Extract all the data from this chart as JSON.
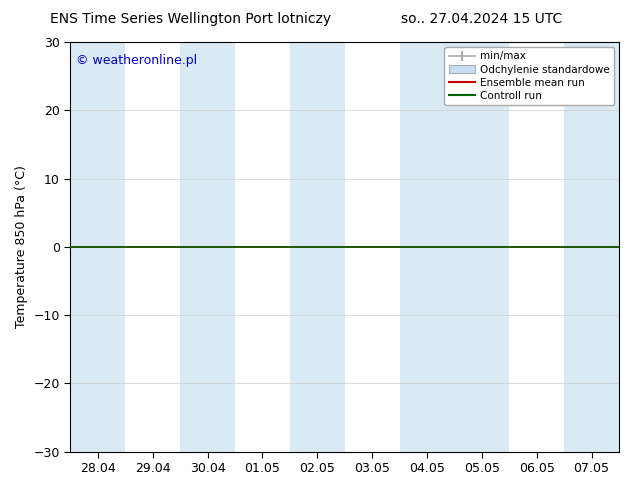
{
  "title_left": "ENS Time Series Wellington Port lotniczy",
  "title_right": "so.. 27.04.2024 15 UTC",
  "ylabel": "Temperature 850 hPa (°C)",
  "watermark": "© weatheronline.pl",
  "watermark_color": "#0000cc",
  "ylim": [
    -30,
    30
  ],
  "yticks": [
    -30,
    -20,
    -10,
    0,
    10,
    20,
    30
  ],
  "x_labels": [
    "28.04",
    "29.04",
    "30.04",
    "01.05",
    "02.05",
    "03.05",
    "04.05",
    "05.05",
    "06.05",
    "07.05"
  ],
  "x_values": [
    0,
    1,
    2,
    3,
    4,
    5,
    6,
    7,
    8,
    9
  ],
  "shaded_columns": [
    0,
    2,
    4,
    6,
    7,
    9
  ],
  "shade_color": "#daeaf5",
  "control_run_color": "#006600",
  "ensemble_mean_color": "#cc0000",
  "legend_labels": [
    "min/max",
    "Odchylenie standardowe",
    "Ensemble mean run",
    "Controll run"
  ],
  "background_color": "#ffffff",
  "plot_bg_color": "#ffffff",
  "spine_color": "#000000",
  "font_size": 9,
  "title_font_size": 10
}
